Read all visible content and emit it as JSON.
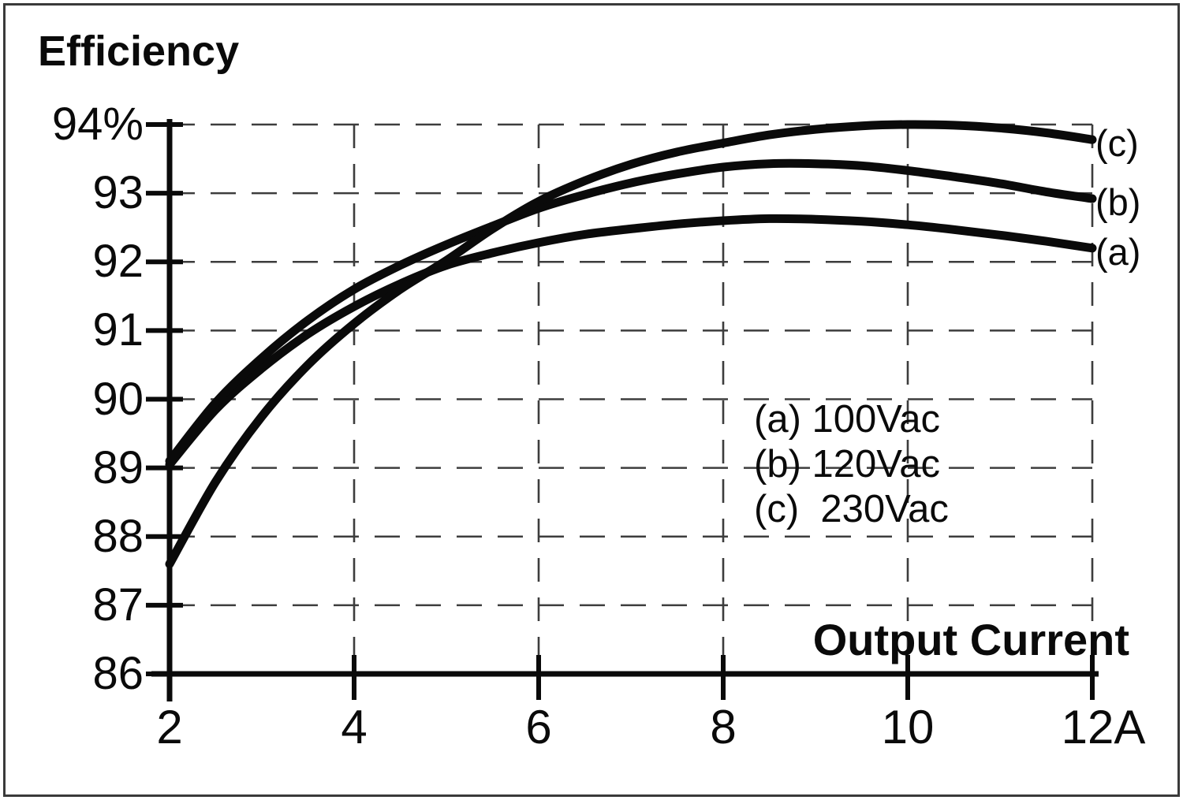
{
  "figure": {
    "title": "Efficiency",
    "x_axis_title": "Output Current",
    "colors": {
      "background": "#ffffff",
      "curve": "#0a0a0a",
      "axis": "#0a0a0a",
      "grid": "#3d3d3d",
      "text": "#0a0a0a",
      "border": "#3a3a3a"
    }
  },
  "chart_data": {
    "type": "line",
    "title": "Efficiency",
    "xlabel": "Output Current",
    "ylabel": "Efficiency (%)",
    "xlim": [
      2,
      12
    ],
    "ylim": [
      86,
      94
    ],
    "grid": "dashed",
    "legend_position": "inside-center-right",
    "x_ticks": [
      2,
      4,
      6,
      8,
      10,
      12
    ],
    "x_tick_labels": [
      "2",
      "4",
      "6",
      "8",
      "10",
      "12A"
    ],
    "y_ticks": [
      86,
      87,
      88,
      89,
      90,
      91,
      92,
      93,
      94
    ],
    "y_tick_labels": [
      "86",
      "87",
      "88",
      "89",
      "90",
      "91",
      "92",
      "93",
      "94%"
    ],
    "x": [
      2,
      2.5,
      3,
      3.5,
      4,
      4.5,
      5,
      5.5,
      6,
      6.5,
      7,
      7.5,
      8,
      8.5,
      9,
      9.5,
      10,
      10.5,
      11,
      11.5,
      12
    ],
    "series": [
      {
        "id": "a",
        "name": "(a) 100Vac",
        "curve_label": "(a)",
        "values": [
          89.05,
          89.85,
          90.45,
          90.95,
          91.35,
          91.68,
          91.95,
          92.13,
          92.28,
          92.4,
          92.48,
          92.55,
          92.6,
          92.63,
          92.62,
          92.59,
          92.54,
          92.47,
          92.39,
          92.3,
          92.2
        ]
      },
      {
        "id": "b",
        "name": "(b) 120Vac",
        "curve_label": "(b)",
        "values": [
          89.1,
          89.95,
          90.6,
          91.15,
          91.6,
          91.95,
          92.25,
          92.52,
          92.78,
          92.98,
          93.15,
          93.28,
          93.38,
          93.43,
          93.43,
          93.4,
          93.33,
          93.24,
          93.14,
          93.02,
          92.92
        ]
      },
      {
        "id": "c",
        "name": "(c)  230Vac",
        "curve_label": "(c)",
        "values": [
          87.6,
          88.8,
          89.75,
          90.5,
          91.1,
          91.6,
          92.02,
          92.48,
          92.88,
          93.18,
          93.42,
          93.6,
          93.73,
          93.85,
          93.93,
          93.98,
          94.0,
          93.99,
          93.95,
          93.88,
          93.78
        ]
      }
    ],
    "legend_entries": [
      "(a) 100Vac",
      "(b) 120Vac",
      "(c)  230Vac"
    ]
  }
}
